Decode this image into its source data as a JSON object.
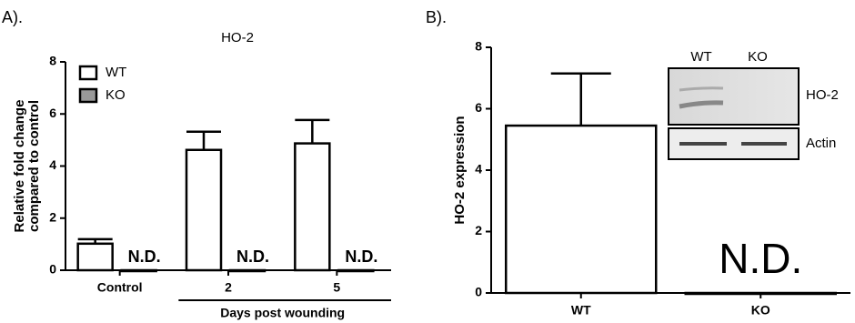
{
  "chart_data": [
    {
      "type": "bar",
      "panel_label": "A).",
      "title": "HO-2",
      "y_label": [
        "Relative fold change",
        "compared to control"
      ],
      "x_label": "Days post wounding",
      "categories": [
        "Control",
        "2",
        "5"
      ],
      "series": [
        {
          "name": "WT",
          "color": "#ffffff",
          "values": [
            1.02,
            4.62,
            4.87
          ],
          "errors": [
            0.17,
            0.7,
            0.9
          ]
        },
        {
          "name": "KO",
          "color": "#999999",
          "values": [
            0,
            0,
            0
          ],
          "value_labels": [
            "N.D.",
            "N.D.",
            "N.D."
          ]
        }
      ],
      "ylim": [
        0,
        8
      ],
      "yticks": [
        0,
        2,
        4,
        6,
        8
      ],
      "legend": "upper left"
    },
    {
      "type": "bar",
      "panel_label": "B).",
      "y_label": [
        "HO-2 expression"
      ],
      "categories": [
        "WT",
        "KO"
      ],
      "series": [
        {
          "color": "#ffffff",
          "values": [
            5.45,
            0
          ],
          "errors": [
            1.7,
            null
          ],
          "value_labels": [
            null,
            "N.D."
          ]
        }
      ],
      "ylim": [
        0,
        8
      ],
      "yticks": [
        0,
        2,
        4,
        6,
        8
      ],
      "inset": {
        "lanes": [
          "WT",
          "KO"
        ],
        "bands": [
          "HO-2",
          "Actin"
        ]
      }
    }
  ]
}
